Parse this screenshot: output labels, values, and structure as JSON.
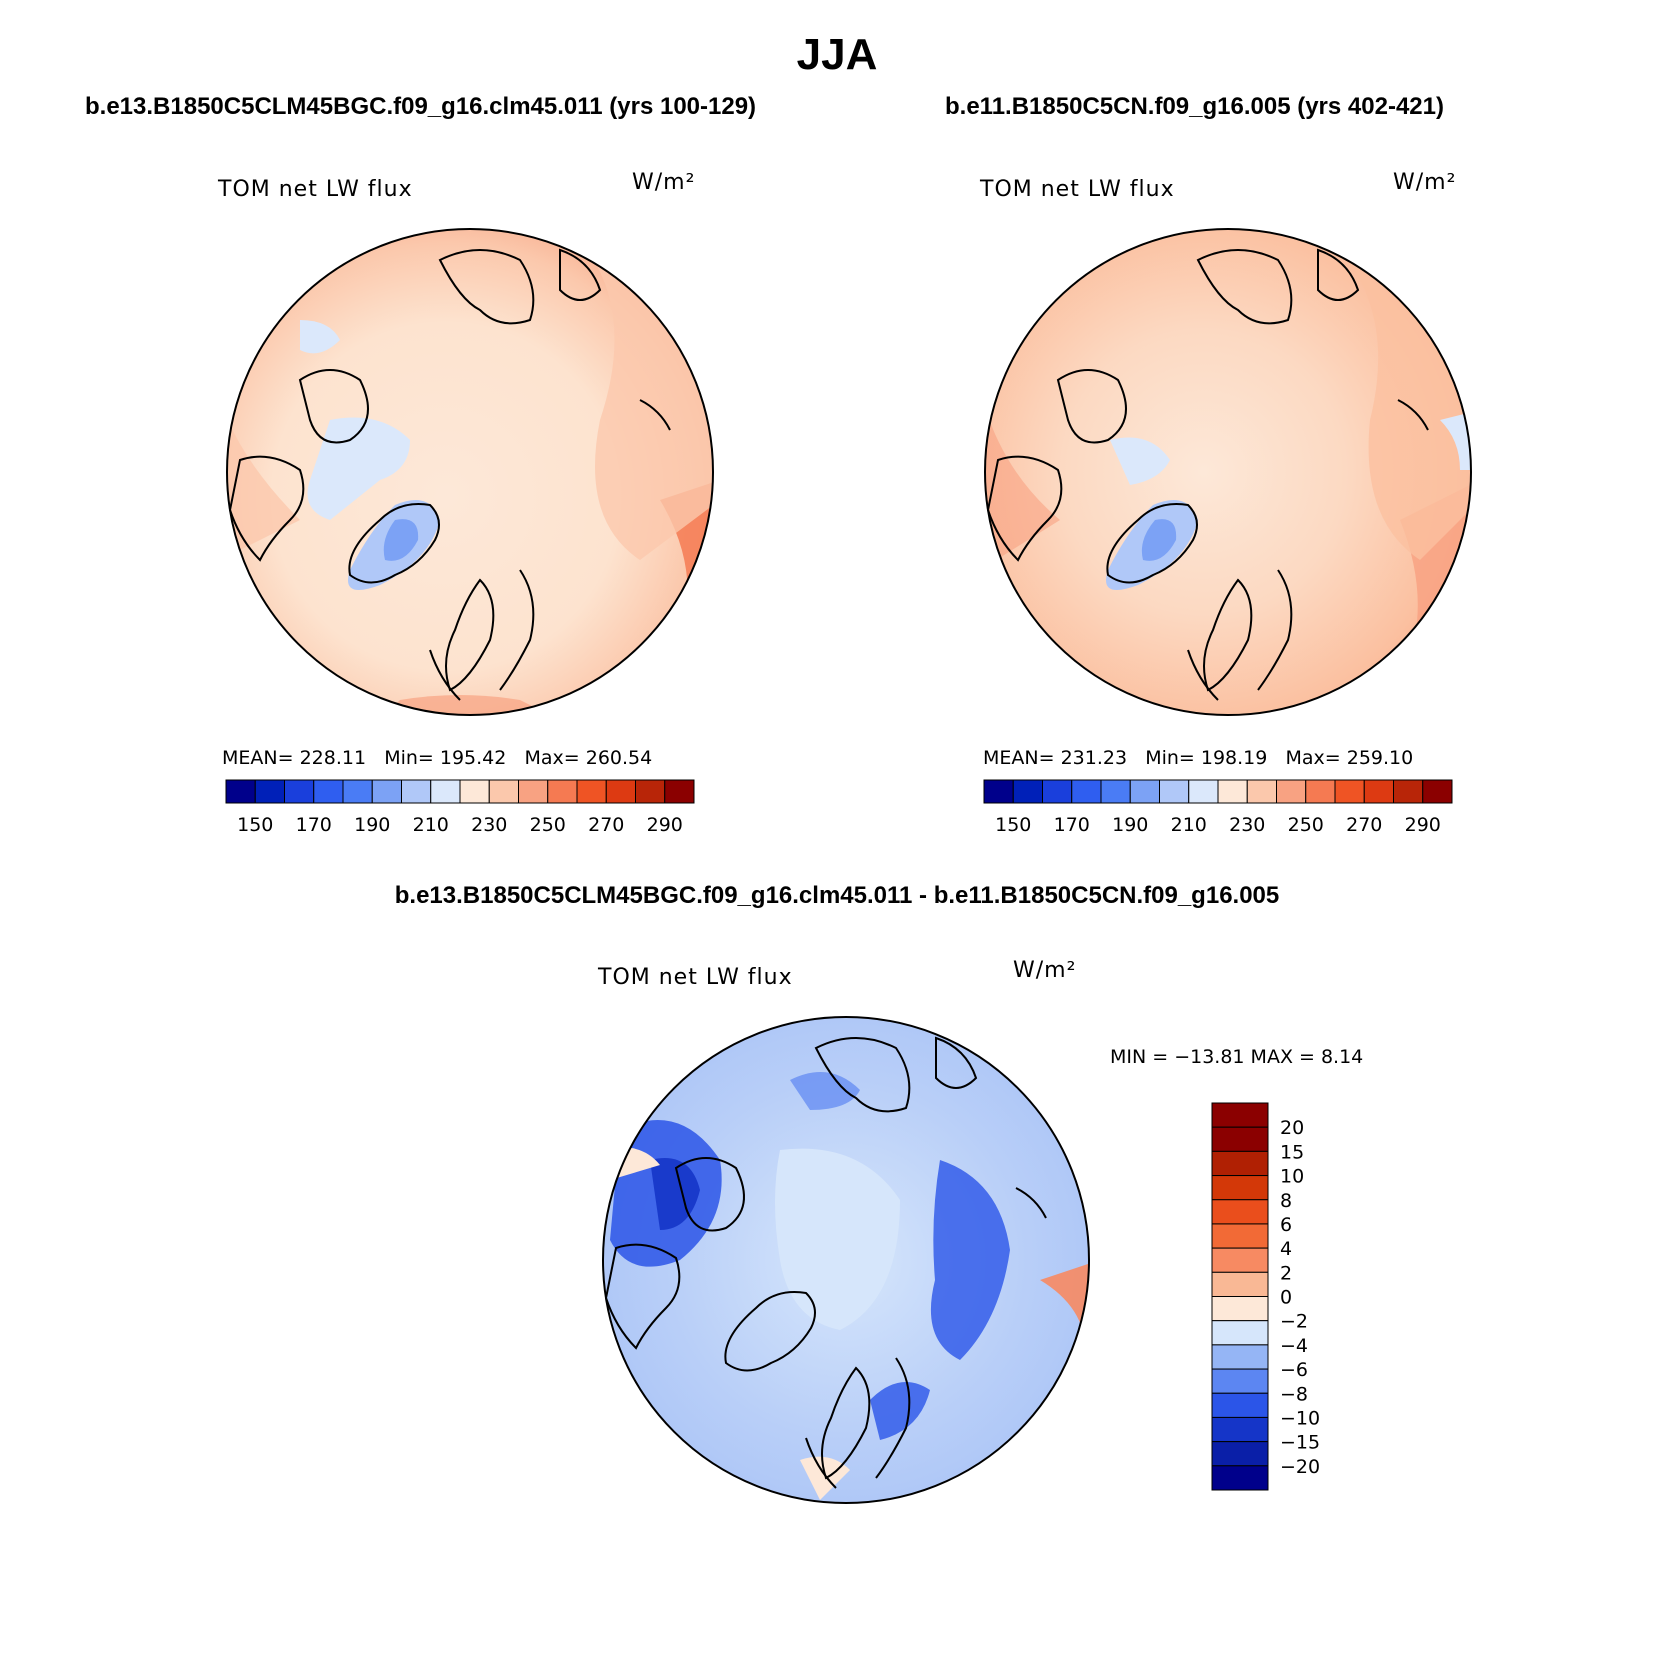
{
  "figure": {
    "title": "JJA",
    "panels": {
      "case1": {
        "title": "b.e13.B1850C5CLM45BGC.f09_g16.clm45.011 (yrs 100-129)",
        "variable": "TOM net LW flux",
        "units": "W/m²",
        "mean_label": "MEAN=",
        "mean": "228.11",
        "min_label": "Min=",
        "min": "195.42",
        "max_label": "Max=",
        "max": "260.54"
      },
      "case2": {
        "title": "b.e11.B1850C5CN.f09_g16.005 (yrs 402-421)",
        "variable": "TOM net LW flux",
        "units": "W/m²",
        "mean_label": "MEAN=",
        "mean": "231.23",
        "min_label": "Min=",
        "min": "198.19",
        "max_label": "Max=",
        "max": "259.10"
      },
      "diff": {
        "title": "b.e13.B1850C5CLM45BGC.f09_g16.clm45.011 - b.e11.B1850C5CN.f09_g16.005",
        "variable": "TOM net LW flux",
        "units": "W/m²",
        "minmax_text": "MIN = −13.81 MAX =    8.14"
      }
    },
    "colorbars": {
      "absolute": {
        "colors": [
          "#00008b",
          "#0020b8",
          "#1a3fdc",
          "#2f5ef0",
          "#4a7cf5",
          "#7ca2f5",
          "#b0c8f8",
          "#dbe8fb",
          "#fde8d8",
          "#fbc8ac",
          "#f8a282",
          "#f57a52",
          "#ef5424",
          "#dd3a12",
          "#b82508",
          "#8b0000"
        ],
        "tick_labels": [
          "150",
          "170",
          "190",
          "210",
          "230",
          "250",
          "270",
          "290"
        ]
      },
      "difference": {
        "colors": [
          "#00008b",
          "#0a1fa8",
          "#1535c8",
          "#2b55e8",
          "#5c86f2",
          "#95b5f5",
          "#d6e6fb",
          "#fde8d8",
          "#f9b895",
          "#f78a62",
          "#f26a36",
          "#ea4e1c",
          "#d33808",
          "#b02003",
          "#8b0000"
        ],
        "tick_labels": [
          "20",
          "15",
          "10",
          "8",
          "6",
          "4",
          "2",
          "0",
          "−2",
          "−4",
          "−6",
          "−8",
          "−10",
          "−15",
          "−20"
        ]
      }
    },
    "chart_data": [
      {
        "type": "heatmap",
        "title": "b.e13.B1850C5CLM45BGC.f09_g16.clm45.011 (yrs 100-129)",
        "variable": "TOM net LW flux",
        "units": "W/m2",
        "projection": "north polar stereographic",
        "mean": 228.11,
        "min": 195.42,
        "max": 260.54,
        "levels": [
          150,
          160,
          170,
          180,
          190,
          200,
          210,
          220,
          230,
          240,
          250,
          260,
          270,
          280,
          290
        ]
      },
      {
        "type": "heatmap",
        "title": "b.e11.B1850C5CN.f09_g16.005 (yrs 402-421)",
        "variable": "TOM net LW flux",
        "units": "W/m2",
        "projection": "north polar stereographic",
        "mean": 231.23,
        "min": 198.19,
        "max": 259.1,
        "levels": [
          150,
          160,
          170,
          180,
          190,
          200,
          210,
          220,
          230,
          240,
          250,
          260,
          270,
          280,
          290
        ]
      },
      {
        "type": "heatmap",
        "title": "b.e13.B1850C5CLM45BGC.f09_g16.clm45.011 - b.e11.B1850C5CN.f09_g16.005",
        "variable": "TOM net LW flux",
        "units": "W/m2",
        "projection": "north polar stereographic",
        "min": -13.81,
        "max": 8.14,
        "levels": [
          -20,
          -15,
          -10,
          -8,
          -6,
          -4,
          -2,
          0,
          2,
          4,
          6,
          8,
          10,
          15,
          20
        ]
      }
    ]
  }
}
